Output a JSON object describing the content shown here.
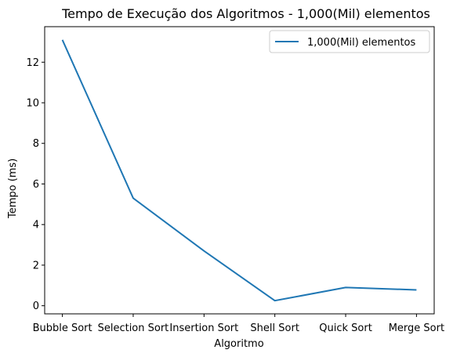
{
  "chart_data": {
    "type": "line",
    "title": "Tempo de Execução dos Algoritmos - 1,000(Mil) elementos",
    "xlabel": "Algoritmo",
    "ylabel": "Tempo (ms)",
    "categories": [
      "Bubble Sort",
      "Selection Sort",
      "Insertion Sort",
      "Shell Sort",
      "Quick Sort",
      "Merge Sort"
    ],
    "series": [
      {
        "name": "1,000(Mil) elementos",
        "values": [
          13.1,
          5.3,
          2.7,
          0.25,
          0.9,
          0.78
        ],
        "color": "#1f77b4"
      }
    ],
    "yticks": [
      0,
      2,
      4,
      6,
      8,
      10,
      12
    ],
    "ylim": [
      -0.4,
      13.75
    ],
    "grid": false,
    "legend_position": "top-right"
  }
}
